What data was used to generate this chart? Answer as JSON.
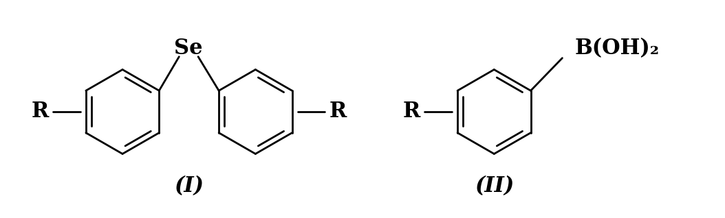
{
  "background_color": "#ffffff",
  "fig_width": 10.54,
  "fig_height": 3.18,
  "dpi": 100,
  "compound_I_label": "(I)",
  "compound_II_label": "(II)",
  "Se_label": "Se",
  "BOH2_label": "B(OH)₂",
  "R_label": "R",
  "Se_fontsize": 22,
  "BOH2_fontsize": 22,
  "R_fontsize": 22,
  "compound_label_fontsize": 22,
  "line_width": 2.0
}
